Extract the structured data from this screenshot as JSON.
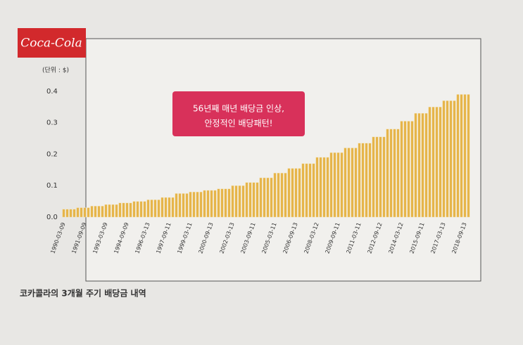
{
  "chart_data": {
    "type": "bar",
    "logo": "Coca-Cola",
    "unit_label": "(단위 : $)",
    "annotation": [
      "56년째 매년 배당금 인상,",
      "안정적인 배당패턴!"
    ],
    "caption": "코카콜라의 3개월 주기 배당금 내역",
    "color": "#e6b54a",
    "ylim": [
      0,
      0.42
    ],
    "yticks": [
      {
        "value": 0,
        "label": "0.0"
      },
      0.1,
      0.2,
      0.3,
      0.4
    ],
    "categories": [
      "1990-03-09",
      null,
      null,
      null,
      null,
      null,
      "1991-09-09",
      null,
      null,
      null,
      null,
      null,
      "1993-03-09",
      null,
      null,
      null,
      null,
      null,
      "1994-09-09",
      null,
      null,
      null,
      null,
      null,
      "1996-03-13",
      null,
      null,
      null,
      null,
      null,
      "1997-09-11",
      null,
      null,
      null,
      null,
      null,
      "1999-03-11",
      null,
      null,
      null,
      null,
      null,
      "2000-09-13",
      null,
      null,
      null,
      null,
      null,
      "2002-03-13",
      null,
      null,
      null,
      null,
      null,
      "2003-09-11",
      null,
      null,
      null,
      null,
      null,
      "2005-03-11",
      null,
      null,
      null,
      null,
      null,
      "2006-09-13",
      null,
      null,
      null,
      null,
      null,
      "2008-03-12",
      null,
      null,
      null,
      null,
      null,
      "2009-09-11",
      null,
      null,
      null,
      null,
      null,
      "2011-03-11",
      null,
      null,
      null,
      null,
      null,
      "2012-09-12",
      null,
      null,
      null,
      null,
      null,
      "2014-03-12",
      null,
      null,
      null,
      null,
      null,
      "2015-09-11",
      null,
      null,
      null,
      null,
      null,
      "2017-03-13",
      null,
      null,
      null,
      null,
      null,
      "2018-09-13",
      null
    ],
    "values": [
      0.025,
      0.025,
      0.025,
      0.025,
      0.03,
      0.03,
      0.03,
      0.03,
      0.035,
      0.035,
      0.035,
      0.035,
      0.04,
      0.04,
      0.04,
      0.04,
      0.045,
      0.045,
      0.045,
      0.045,
      0.05,
      0.05,
      0.05,
      0.05,
      0.055,
      0.055,
      0.055,
      0.055,
      0.0625,
      0.0625,
      0.0625,
      0.0625,
      0.075,
      0.075,
      0.075,
      0.075,
      0.08,
      0.08,
      0.08,
      0.08,
      0.085,
      0.085,
      0.085,
      0.085,
      0.09,
      0.09,
      0.09,
      0.09,
      0.1,
      0.1,
      0.1,
      0.1,
      0.11,
      0.11,
      0.11,
      0.11,
      0.125,
      0.125,
      0.125,
      0.125,
      0.14,
      0.14,
      0.14,
      0.14,
      0.155,
      0.155,
      0.155,
      0.155,
      0.17,
      0.17,
      0.17,
      0.17,
      0.19,
      0.19,
      0.19,
      0.19,
      0.205,
      0.205,
      0.205,
      0.205,
      0.22,
      0.22,
      0.22,
      0.22,
      0.235,
      0.235,
      0.235,
      0.235,
      0.255,
      0.255,
      0.255,
      0.255,
      0.28,
      0.28,
      0.28,
      0.28,
      0.305,
      0.305,
      0.305,
      0.305,
      0.33,
      0.33,
      0.33,
      0.33,
      0.35,
      0.35,
      0.35,
      0.35,
      0.37,
      0.37,
      0.37,
      0.37,
      0.39,
      0.39,
      0.39,
      0.39
    ]
  }
}
